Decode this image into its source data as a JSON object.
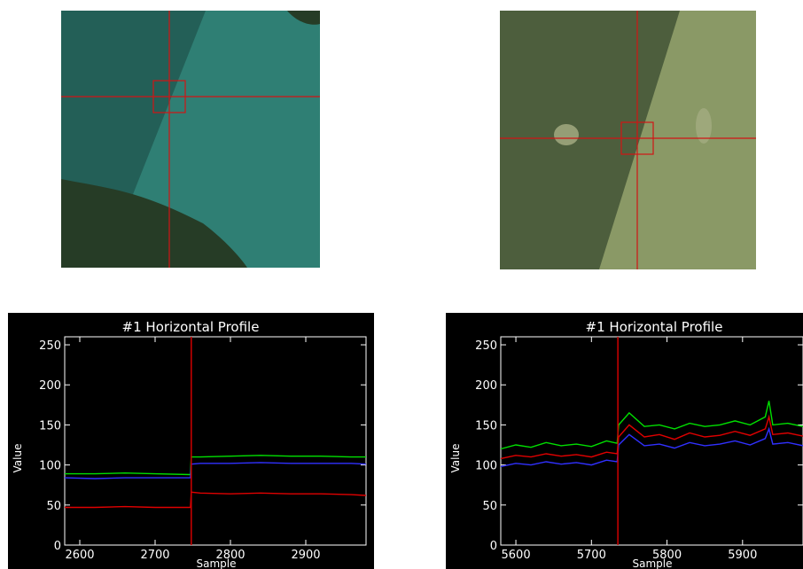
{
  "images": [
    {
      "scene": "water-and-trees",
      "water_color": "#2f7f74",
      "water_dark_color": "#235f57",
      "trees_color": "#263c26",
      "crosshair_color": "#d01515"
    },
    {
      "scene": "field",
      "field_color": "#8a9966",
      "field_dark_color": "#4d5e3d",
      "crosshair_color": "#d01515"
    }
  ],
  "chart_data": [
    {
      "type": "line",
      "title": "#1  Horizontal Profile",
      "xlabel": "Sample",
      "ylabel": "Value",
      "xlim": [
        2580,
        2980
      ],
      "ylim": [
        0,
        260
      ],
      "xticks": [
        2600,
        2700,
        2800,
        2900
      ],
      "yticks": [
        0,
        50,
        100,
        150,
        200,
        250
      ],
      "marker_x": 2748,
      "marker_color": "#d00000",
      "background": "#000000",
      "series": [
        {
          "color": "#00e000",
          "x": [
            2580,
            2620,
            2660,
            2700,
            2747,
            2748,
            2760,
            2800,
            2840,
            2880,
            2920,
            2960,
            2980
          ],
          "values": [
            89,
            89,
            90,
            89,
            88,
            110,
            110,
            111,
            112,
            111,
            111,
            110,
            110
          ]
        },
        {
          "color": "#3030ff",
          "x": [
            2580,
            2620,
            2660,
            2700,
            2747,
            2748,
            2760,
            2800,
            2840,
            2880,
            2920,
            2960,
            2980
          ],
          "values": [
            84,
            83,
            84,
            84,
            84,
            101,
            102,
            102,
            103,
            102,
            102,
            102,
            101
          ]
        },
        {
          "color": "#e00000",
          "x": [
            2580,
            2620,
            2660,
            2700,
            2747,
            2748,
            2760,
            2800,
            2840,
            2880,
            2920,
            2960,
            2980
          ],
          "values": [
            47,
            47,
            48,
            47,
            47,
            66,
            65,
            64,
            65,
            64,
            64,
            63,
            62
          ]
        }
      ]
    },
    {
      "type": "line",
      "title": "#1  Horizontal Profile",
      "xlabel": "Sample",
      "ylabel": "Value",
      "xlim": [
        5580,
        5980
      ],
      "ylim": [
        0,
        260
      ],
      "xticks": [
        5600,
        5700,
        5800,
        5900
      ],
      "yticks": [
        0,
        50,
        100,
        150,
        200,
        250
      ],
      "marker_x": 5735,
      "marker_color": "#d00000",
      "background": "#000000",
      "series": [
        {
          "color": "#00e000",
          "x": [
            5580,
            5600,
            5620,
            5640,
            5660,
            5680,
            5700,
            5720,
            5734,
            5736,
            5750,
            5770,
            5790,
            5810,
            5830,
            5850,
            5870,
            5890,
            5910,
            5930,
            5935,
            5940,
            5960,
            5980
          ],
          "values": [
            120,
            125,
            122,
            128,
            124,
            126,
            123,
            130,
            127,
            150,
            165,
            148,
            150,
            145,
            152,
            148,
            150,
            155,
            150,
            160,
            180,
            150,
            152,
            148
          ]
        },
        {
          "color": "#e00000",
          "x": [
            5580,
            5600,
            5620,
            5640,
            5660,
            5680,
            5700,
            5720,
            5734,
            5736,
            5750,
            5770,
            5790,
            5810,
            5830,
            5850,
            5870,
            5890,
            5910,
            5930,
            5935,
            5940,
            5960,
            5980
          ],
          "values": [
            108,
            112,
            110,
            114,
            111,
            113,
            110,
            116,
            114,
            135,
            150,
            135,
            138,
            132,
            140,
            135,
            137,
            142,
            137,
            145,
            160,
            138,
            140,
            136
          ]
        },
        {
          "color": "#3030ff",
          "x": [
            5580,
            5600,
            5620,
            5640,
            5660,
            5680,
            5700,
            5720,
            5734,
            5736,
            5750,
            5770,
            5790,
            5810,
            5830,
            5850,
            5870,
            5890,
            5910,
            5930,
            5935,
            5940,
            5960,
            5980
          ],
          "values": [
            98,
            102,
            100,
            104,
            101,
            103,
            100,
            106,
            104,
            125,
            138,
            124,
            126,
            121,
            128,
            124,
            126,
            130,
            125,
            133,
            145,
            126,
            128,
            124
          ]
        }
      ]
    }
  ]
}
